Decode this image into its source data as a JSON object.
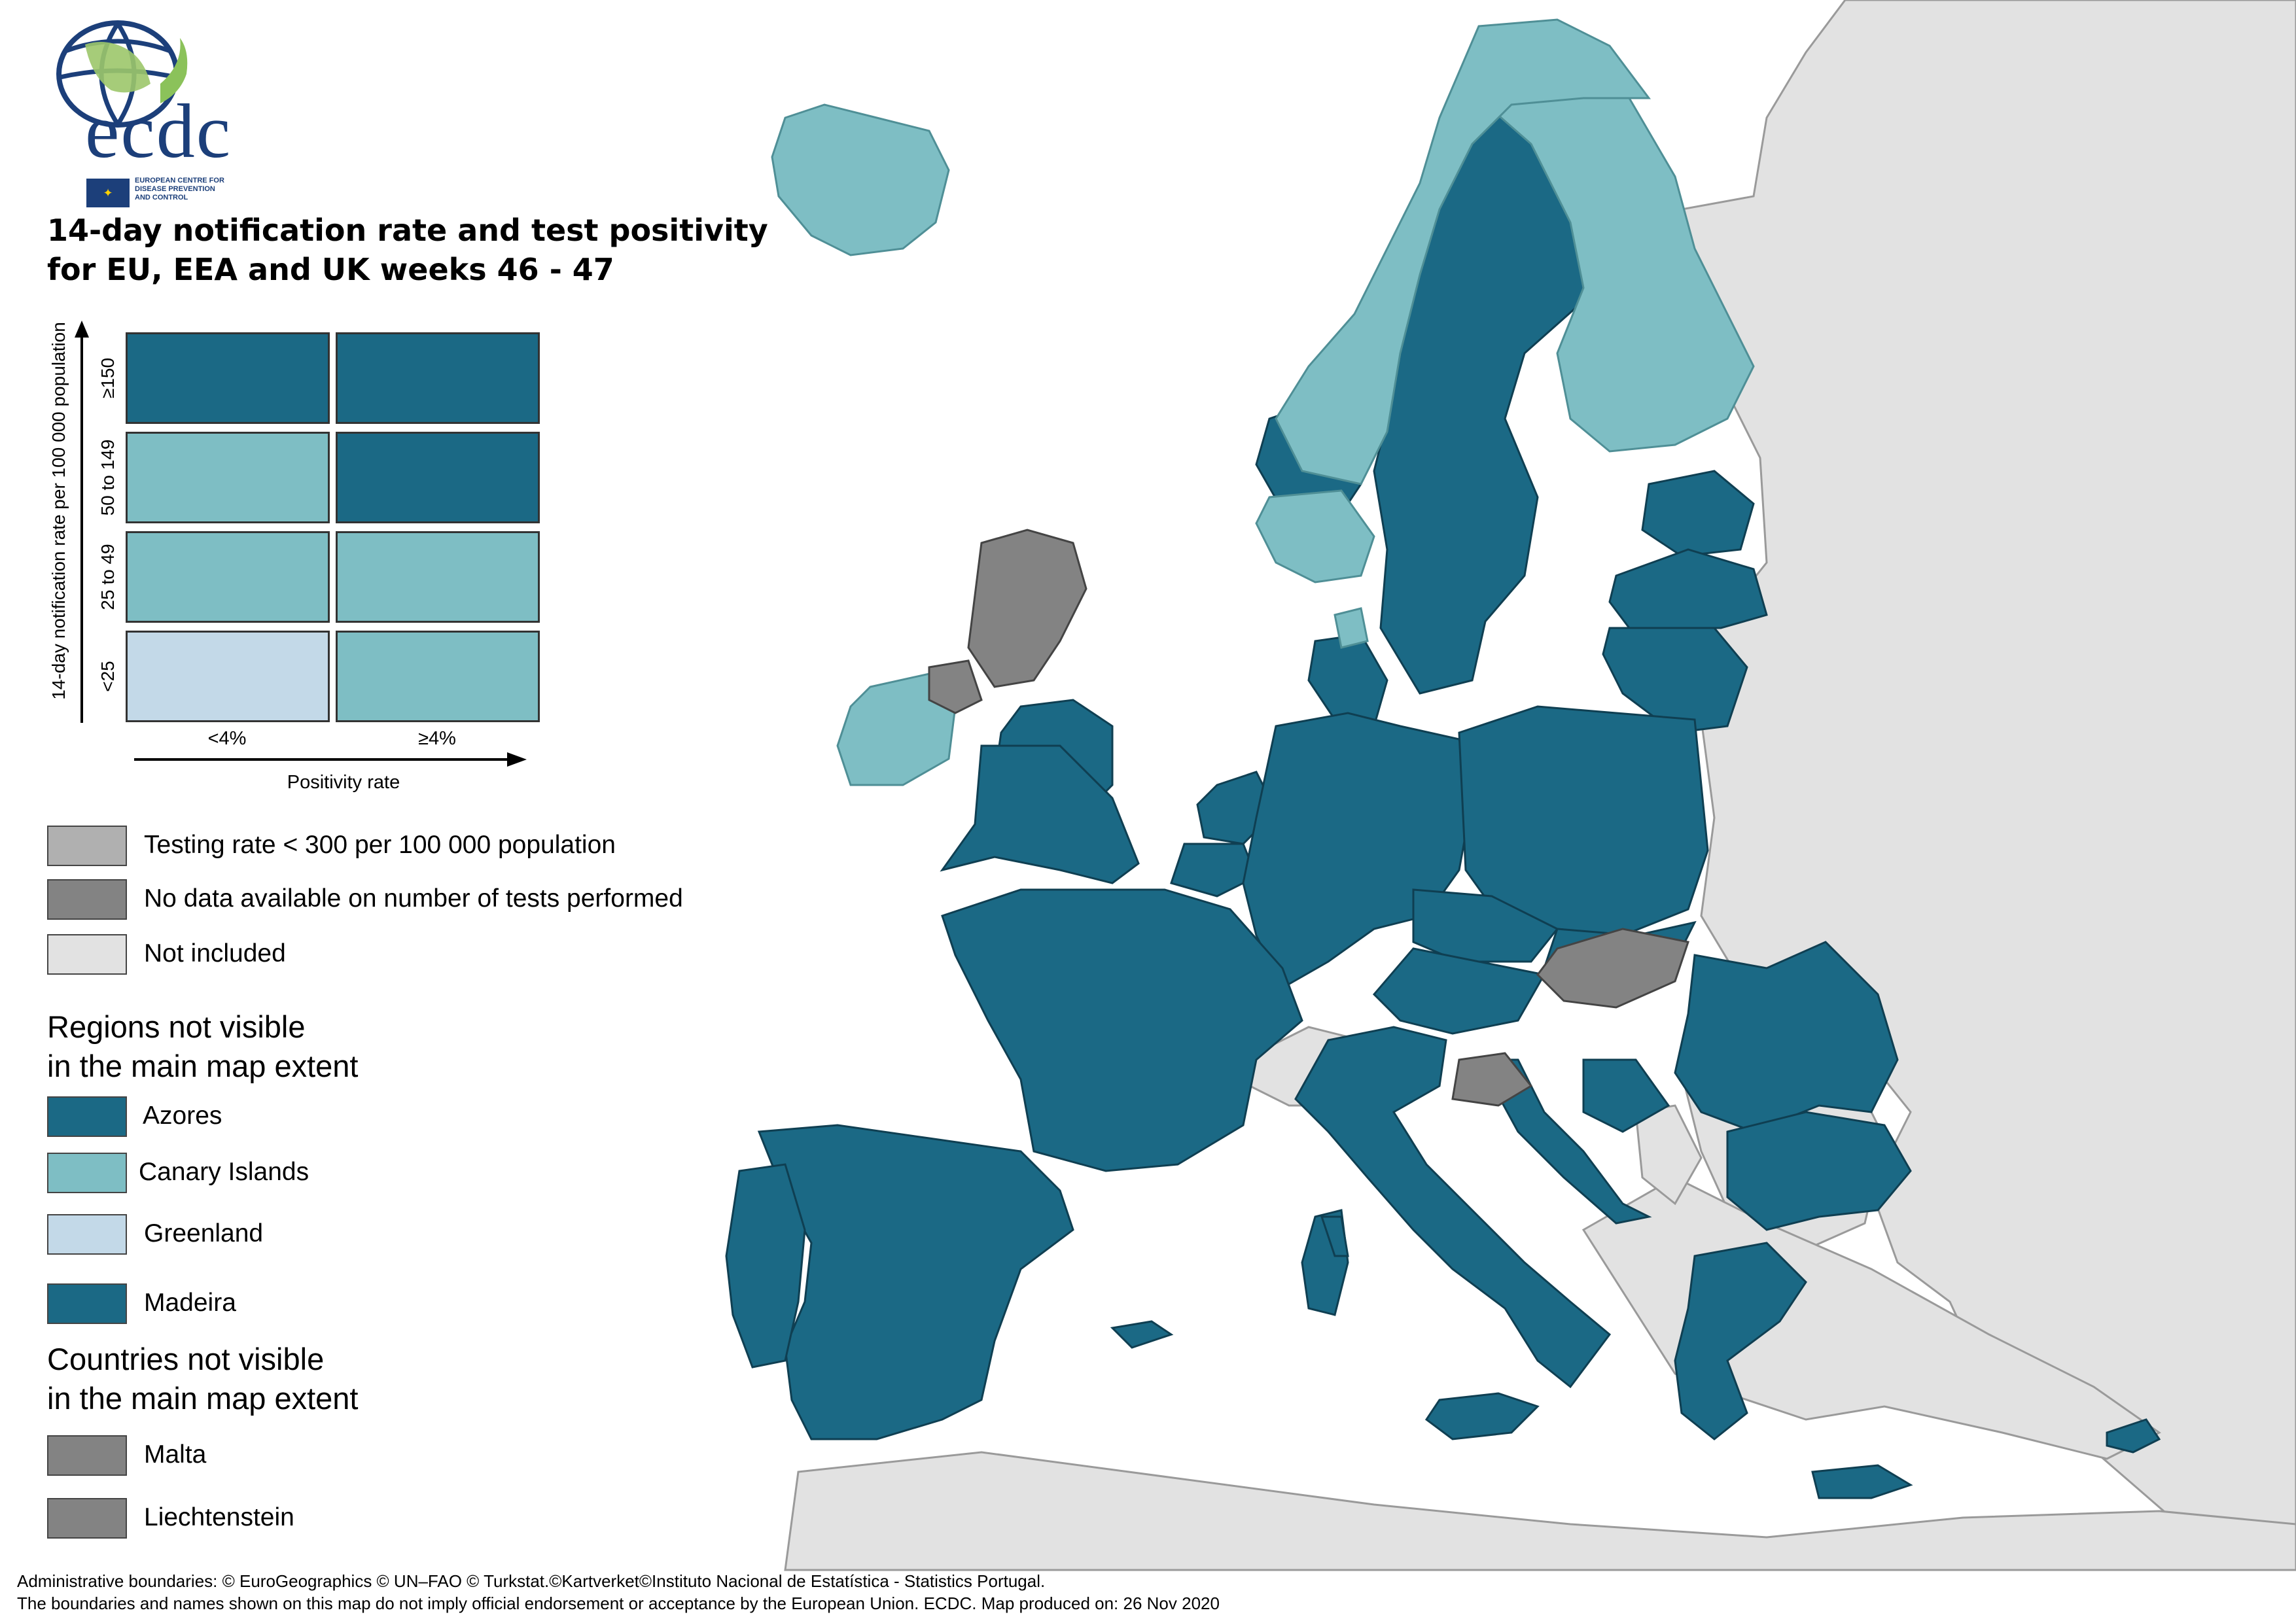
{
  "logo": {
    "wordmark": "ecdc",
    "tagline_1": "EUROPEAN CENTRE FOR",
    "tagline_2": "DISEASE PREVENTION",
    "tagline_3": "AND CONTROL"
  },
  "title": {
    "line1": "14-day notification rate and test positivity",
    "line2": "for EU, EEA and UK weeks 46 - 47"
  },
  "matrix": {
    "y_axis_label": "14-day notification rate per 100 000 population",
    "x_axis_label": "Positivity rate",
    "rows": [
      "≥150",
      "50 to 149",
      "25 to 49",
      "<25"
    ],
    "cols": [
      "<4%",
      "≥4%"
    ],
    "cell_colors": [
      [
        "#1b6985",
        "#1b6985"
      ],
      [
        "#7ebec4",
        "#1b6985"
      ],
      [
        "#7ebec4",
        "#7ebec4"
      ],
      [
        "#c3d9e8",
        "#7ebec4"
      ]
    ]
  },
  "status_legend": [
    {
      "label": "Testing rate < 300 per 100 000 population",
      "color": "#b0b0b0"
    },
    {
      "label": "No data available on number of tests performed",
      "color": "#838383"
    },
    {
      "label": "Not included",
      "color": "#e2e2e2"
    }
  ],
  "regions_heading": {
    "line1": "Regions not visible",
    "line2": "in the main map extent"
  },
  "regions": [
    {
      "label": "Azores",
      "color": "#1b6985"
    },
    {
      "label": "Canary Islands",
      "color": "#7ebec4"
    },
    {
      "label": "Greenland",
      "color": "#c3d9e8"
    },
    {
      "label": "Madeira",
      "color": "#1b6985"
    }
  ],
  "countries_heading": {
    "line1": "Countries not visible",
    "line2": "in the main map extent"
  },
  "countries": [
    {
      "label": "Malta",
      "color": "#838383"
    },
    {
      "label": "Liechtenstein",
      "color": "#838383"
    }
  ],
  "footer": {
    "line1": "Administrative boundaries: © EuroGeographics © UN–FAO © Turkstat.©Kartverket©Instituto Nacional de Estatística - Statistics Portugal.",
    "line2": "The boundaries and names shown on this map do not imply official endorsement or acceptance by the European Union. ECDC. Map produced on: 26 Nov 2020"
  },
  "colors": {
    "dark_teal": "#1b6985",
    "light_teal": "#7ebec4",
    "pale_blue": "#c3d9e8",
    "grey_no_data": "#838383",
    "not_included": "#e2e2e2"
  }
}
